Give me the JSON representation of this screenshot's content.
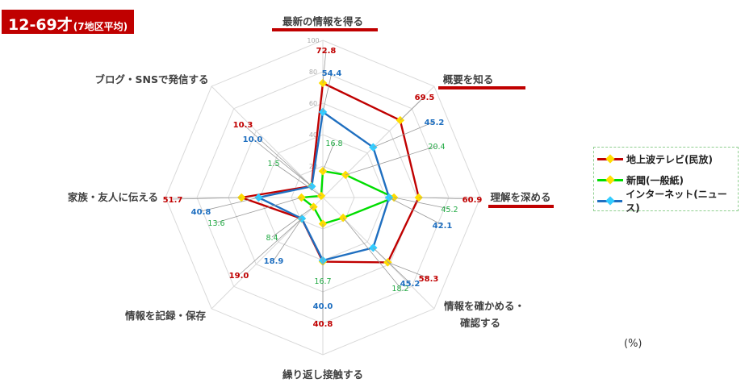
{
  "header": {
    "title_main": "12-69才",
    "title_sub": "(7地区平均)"
  },
  "unit_label": "(%)",
  "colors": {
    "tv": "#c00000",
    "newspaper": "#00dd00",
    "internet": "#1f6fc0",
    "marker": "#ffdd00",
    "internet_marker": "#33ccff",
    "highlight": "#c00000"
  },
  "chart_data": {
    "type": "radar",
    "title": "12-69才(7地区平均)",
    "unit": "%",
    "rlim": [
      0,
      100
    ],
    "ticks": [
      20,
      40,
      60,
      80,
      100
    ],
    "categories": [
      "最新の情報を得る",
      "概要を知る",
      "理解を深める",
      "情報を確かめる・確認する",
      "繰り返し接触する",
      "情報を記録・保存",
      "家族・友人に伝える",
      "ブログ・SNSで発信する"
    ],
    "highlighted_categories": [
      "最新の情報を得る",
      "概要を知る",
      "理解を深める"
    ],
    "series": [
      {
        "name": "地上波テレビ(民放)",
        "values": [
          72.8,
          69.5,
          60.9,
          58.3,
          40.8,
          19.0,
          51.7,
          10.3
        ]
      },
      {
        "name": "新聞(一般紙)",
        "values": [
          16.8,
          20.4,
          45.2,
          18.2,
          16.7,
          8.4,
          13.6,
          1.5
        ]
      },
      {
        "name": "インターネット(ニュース)",
        "values": [
          54.4,
          45.2,
          42.1,
          45.2,
          40.0,
          18.9,
          40.8,
          10.0
        ]
      }
    ],
    "legend_position": "right"
  }
}
